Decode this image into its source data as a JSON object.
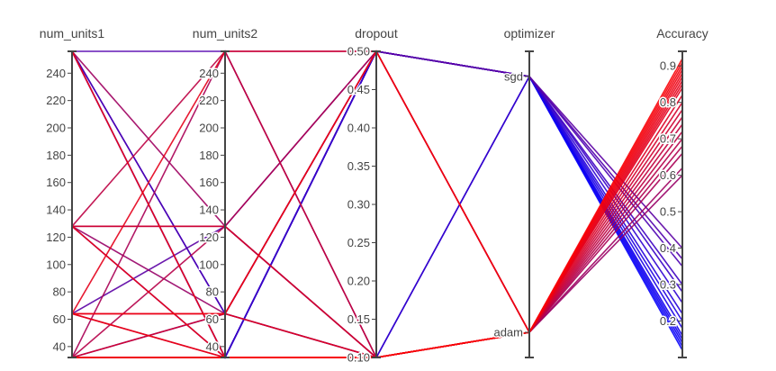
{
  "chart_data": {
    "type": "parallel_coordinates",
    "colors": {
      "low": "#0000ff",
      "high": "#ff0000",
      "axis": "#444444",
      "background": "#ffffff"
    },
    "dimensions": [
      {
        "key": "num_units1",
        "label": "num_units1",
        "kind": "linear",
        "range": [
          32,
          256
        ],
        "ticks": [
          40,
          60,
          80,
          100,
          120,
          140,
          160,
          180,
          200,
          220,
          240
        ]
      },
      {
        "key": "num_units2",
        "label": "num_units2",
        "kind": "linear",
        "range": [
          32,
          256
        ],
        "ticks": [
          40,
          60,
          80,
          100,
          120,
          140,
          160,
          180,
          200,
          220,
          240
        ]
      },
      {
        "key": "dropout",
        "label": "dropout",
        "kind": "linear",
        "range": [
          0.1,
          0.5
        ],
        "ticks": [
          0.1,
          0.15,
          0.2,
          0.25,
          0.3,
          0.35,
          0.4,
          0.45,
          0.5
        ],
        "tick_text": [
          "0.10",
          "0.15",
          "0.20",
          "0.25",
          "0.30",
          "0.35",
          "0.40",
          "0.45",
          "0.50"
        ]
      },
      {
        "key": "optimizer",
        "label": "optimizer",
        "kind": "categorical",
        "categories": [
          "sgd",
          "adam"
        ]
      },
      {
        "key": "Accuracy",
        "label": "Accuracy",
        "kind": "linear",
        "range": [
          0.1,
          0.94
        ],
        "ticks": [
          0.2,
          0.3,
          0.4,
          0.5,
          0.6,
          0.7,
          0.8,
          0.9
        ]
      }
    ],
    "color_by": "Accuracy",
    "records": [
      [
        256,
        32,
        0.5,
        "sgd",
        0.22
      ],
      [
        256,
        64,
        0.1,
        "sgd",
        0.28
      ],
      [
        256,
        128,
        0.1,
        "adam",
        0.62
      ],
      [
        256,
        256,
        0.5,
        "sgd",
        0.37
      ],
      [
        256,
        64,
        0.5,
        "sgd",
        0.35
      ],
      [
        128,
        256,
        0.1,
        "adam",
        0.72
      ],
      [
        128,
        32,
        0.5,
        "sgd",
        0.3
      ],
      [
        128,
        64,
        0.1,
        "adam",
        0.6
      ],
      [
        128,
        128,
        0.5,
        "adam",
        0.68
      ],
      [
        128,
        128,
        0.1,
        "adam",
        0.78
      ],
      [
        64,
        256,
        0.5,
        "adam",
        0.85
      ],
      [
        64,
        128,
        0.5,
        "sgd",
        0.4
      ],
      [
        64,
        64,
        0.5,
        "adam",
        0.8
      ],
      [
        64,
        32,
        0.1,
        "adam",
        0.74
      ],
      [
        64,
        64,
        0.5,
        "adam",
        0.88
      ],
      [
        32,
        32,
        0.1,
        "sgd",
        0.14
      ],
      [
        32,
        32,
        0.5,
        "sgd",
        0.12
      ],
      [
        32,
        256,
        0.1,
        "adam",
        0.66
      ],
      [
        32,
        64,
        0.5,
        "sgd",
        0.18
      ],
      [
        32,
        128,
        0.1,
        "adam",
        0.7
      ],
      [
        32,
        32,
        0.1,
        "adam",
        0.92
      ],
      [
        32,
        32,
        0.1,
        "adam",
        0.9
      ],
      [
        32,
        32,
        0.1,
        "adam",
        0.86
      ],
      [
        32,
        32,
        0.1,
        "adam",
        0.82
      ],
      [
        64,
        32,
        0.1,
        "adam",
        0.87
      ],
      [
        256,
        32,
        0.5,
        "sgd",
        0.16
      ],
      [
        32,
        32,
        0.5,
        "sgd",
        0.2
      ],
      [
        32,
        32,
        0.5,
        "sgd",
        0.15
      ],
      [
        256,
        32,
        0.1,
        "adam",
        0.91
      ],
      [
        128,
        32,
        0.1,
        "adam",
        0.89
      ],
      [
        32,
        64,
        0.1,
        "adam",
        0.84
      ],
      [
        32,
        32,
        0.1,
        "adam",
        0.76
      ],
      [
        32,
        32,
        0.5,
        "sgd",
        0.25
      ],
      [
        32,
        32,
        0.5,
        "sgd",
        0.13
      ]
    ]
  }
}
